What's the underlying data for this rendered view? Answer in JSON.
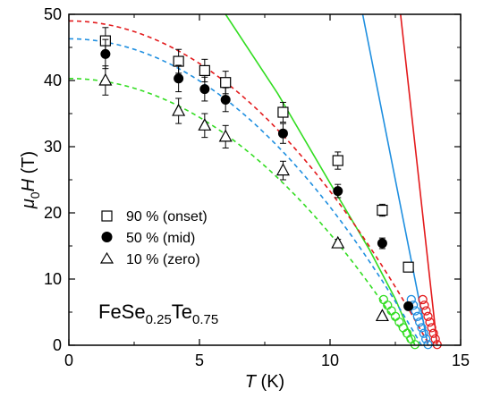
{
  "chart_data": {
    "type": "scatter",
    "xlabel": {
      "symbol": "T",
      "unit": " (K)"
    },
    "ylabel": {
      "main": "μ",
      "sub": "0",
      "symbol": "H",
      "unit": " (T)"
    },
    "xlim": [
      0,
      15
    ],
    "ylim": [
      0,
      50
    ],
    "xticks": [
      0,
      5,
      10,
      15
    ],
    "yticks": [
      0,
      10,
      20,
      30,
      40,
      50
    ],
    "annotation": {
      "base": "FeSe",
      "sub1": "0.25",
      "mid": "Te",
      "sub2": "0.75"
    },
    "legend_position": "center-left",
    "series": [
      {
        "name": "90 % (onset)",
        "marker": "open-square",
        "color": "#000000",
        "points": [
          {
            "x": 1.4,
            "y": 46.0,
            "err": 2.0
          },
          {
            "x": 4.2,
            "y": 42.9,
            "err": 1.8
          },
          {
            "x": 5.2,
            "y": 41.5,
            "err": 1.7
          },
          {
            "x": 6.0,
            "y": 39.7,
            "err": 1.7
          },
          {
            "x": 8.2,
            "y": 35.2,
            "err": 1.5
          },
          {
            "x": 10.3,
            "y": 27.9,
            "err": 1.3
          },
          {
            "x": 12.0,
            "y": 20.4,
            "err": 0.9
          },
          {
            "x": 13.0,
            "y": 11.8,
            "err": 0.0
          }
        ]
      },
      {
        "name": "50 % (mid)",
        "marker": "filled-circle",
        "color": "#000000",
        "points": [
          {
            "x": 1.4,
            "y": 44.0,
            "err": 2.2
          },
          {
            "x": 4.2,
            "y": 40.3,
            "err": 2.0
          },
          {
            "x": 5.2,
            "y": 38.7,
            "err": 1.8
          },
          {
            "x": 6.0,
            "y": 37.1,
            "err": 1.8
          },
          {
            "x": 8.2,
            "y": 32.0,
            "err": 1.5
          },
          {
            "x": 10.3,
            "y": 23.3,
            "err": 1.0
          },
          {
            "x": 12.0,
            "y": 15.4,
            "err": 0.8
          },
          {
            "x": 13.0,
            "y": 5.9,
            "err": 0.0
          }
        ]
      },
      {
        "name": "10 % (zero)",
        "marker": "open-triangle",
        "color": "#000000",
        "points": [
          {
            "x": 1.4,
            "y": 40.0,
            "err": 2.2
          },
          {
            "x": 4.2,
            "y": 35.4,
            "err": 1.9
          },
          {
            "x": 5.2,
            "y": 33.2,
            "err": 1.8
          },
          {
            "x": 6.0,
            "y": 31.5,
            "err": 1.7
          },
          {
            "x": 8.2,
            "y": 26.4,
            "err": 1.4
          },
          {
            "x": 10.3,
            "y": 15.4,
            "err": 0.6
          },
          {
            "x": 12.0,
            "y": 4.4,
            "err": 0.0
          }
        ]
      }
    ],
    "low_field_points": [
      {
        "color": "#e31a1c",
        "x": [
          14.1,
          14.03,
          13.96,
          13.89,
          13.82,
          13.75,
          13.68,
          13.61,
          13.55
        ],
        "y": [
          0.1,
          0.95,
          1.8,
          2.65,
          3.5,
          4.35,
          5.2,
          6.05,
          6.9
        ]
      },
      {
        "color": "#1f8fe0",
        "x": [
          13.75,
          13.67,
          13.59,
          13.51,
          13.43,
          13.35,
          13.27,
          13.19,
          13.11
        ],
        "y": [
          0.1,
          0.95,
          1.8,
          2.65,
          3.5,
          4.35,
          5.2,
          6.05,
          6.9
        ]
      },
      {
        "color": "#33dd22",
        "x": [
          13.25,
          13.1,
          12.95,
          12.8,
          12.65,
          12.5,
          12.35,
          12.2,
          12.05
        ],
        "y": [
          0.1,
          0.95,
          1.8,
          2.65,
          3.5,
          4.35,
          5.2,
          6.05,
          6.9
        ]
      }
    ],
    "dashed_fits": [
      {
        "color": "#e31a1c",
        "H0": 49.0,
        "Tc": 13.8
      },
      {
        "color": "#1f8fe0",
        "H0": 46.3,
        "Tc": 13.5
      },
      {
        "color": "#33dd22",
        "H0": 40.3,
        "Tc": 13.1
      }
    ],
    "solid_lines": [
      {
        "color": "#e31a1c",
        "x": [
          12.7,
          14.1
        ],
        "y": [
          50,
          0
        ]
      },
      {
        "color": "#1f8fe0",
        "x": [
          11.25,
          13.75
        ],
        "y": [
          50,
          0
        ]
      },
      {
        "color": "#33dd22",
        "x": [
          6.0,
          8.0,
          10.0,
          11.5,
          12.5,
          13.25
        ],
        "y": [
          50,
          38.0,
          24.5,
          14.5,
          7.0,
          0
        ]
      }
    ]
  }
}
